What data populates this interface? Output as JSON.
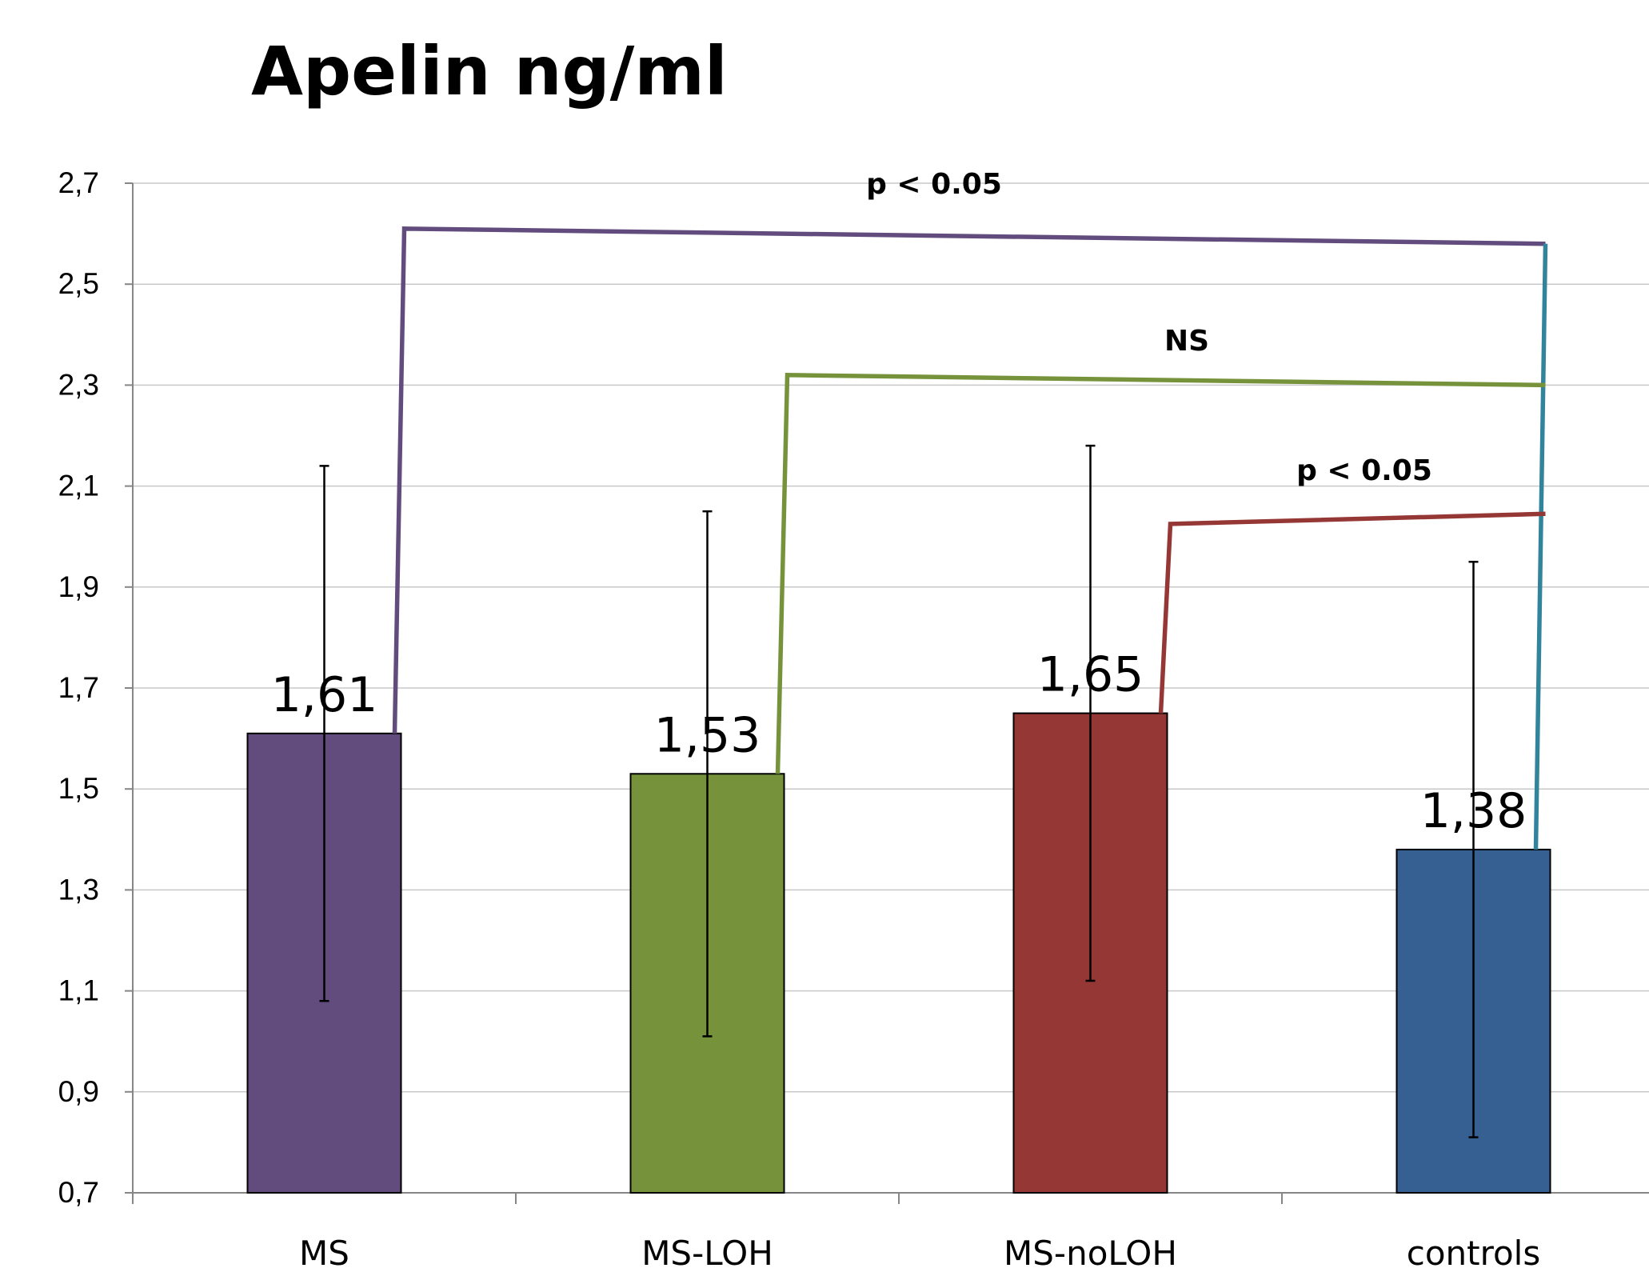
{
  "chart_data": {
    "type": "bar",
    "title": "Apelin ng/ml",
    "xlabel": "",
    "ylabel": "",
    "ylim": [
      0.7,
      2.7
    ],
    "yticks": [
      0.7,
      0.9,
      1.1,
      1.3,
      1.5,
      1.7,
      1.9,
      2.1,
      2.3,
      2.5,
      2.7
    ],
    "ytick_labels": [
      "0,7",
      "0,9",
      "1,1",
      "1,3",
      "1,5",
      "1,7",
      "1,9",
      "2,1",
      "2,3",
      "2,5",
      "2,7"
    ],
    "grid": true,
    "legend": "none",
    "categories": [
      "MS",
      "MS-LOH",
      "MS-noLOH",
      "controls"
    ],
    "values": [
      1.61,
      1.53,
      1.65,
      1.38
    ],
    "value_labels": [
      "1,61",
      "1,53",
      "1,65",
      "1,38"
    ],
    "error_low": [
      1.08,
      1.01,
      1.12,
      0.81
    ],
    "error_high": [
      2.14,
      2.05,
      2.18,
      1.95
    ],
    "bar_colors": [
      "#614c7d",
      "#76933c",
      "#953735",
      "#376092"
    ],
    "comparisons": [
      {
        "from": "MS",
        "to": "controls",
        "label": "p < 0.05",
        "color": "#614c7d",
        "end_color": "#31849b",
        "level_start": 2.61,
        "level_end": 2.58
      },
      {
        "from": "MS-LOH",
        "to": "controls",
        "label": "NS",
        "color": "#76933c",
        "level_start": 2.32,
        "level_end": 2.3
      },
      {
        "from": "MS-noLOH",
        "to": "controls",
        "label": "p < 0.05",
        "color": "#953735",
        "level_start": 2.025,
        "level_end": 2.045
      }
    ]
  }
}
